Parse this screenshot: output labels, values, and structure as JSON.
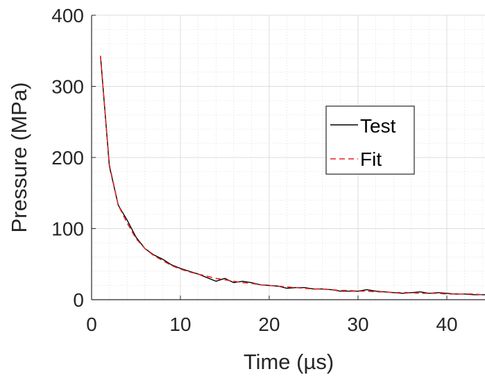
{
  "chart_data": {
    "type": "line",
    "title": "",
    "xlabel": "Time (µs)",
    "ylabel": "Pressure (MPa)",
    "xlim": [
      0,
      45
    ],
    "ylim": [
      0,
      400
    ],
    "x_ticks": [
      0,
      10,
      20,
      30,
      40
    ],
    "x_tick_labels": [
      "0",
      "10",
      "20",
      "30",
      "40"
    ],
    "y_ticks": [
      0,
      100,
      200,
      300,
      400
    ],
    "y_tick_labels": [
      "0",
      "100",
      "200",
      "300",
      "400"
    ],
    "grid": true,
    "minor_grid": true,
    "legend_position": "upper-right",
    "series": [
      {
        "name": "Test",
        "color": "#000000",
        "line_style": "solid",
        "x": [
          1,
          2,
          3,
          4,
          5,
          6,
          7,
          8,
          9,
          10,
          11,
          12,
          13,
          14,
          15,
          16,
          17,
          18,
          19,
          20,
          21,
          22,
          23,
          24,
          25,
          26,
          27,
          28,
          29,
          30,
          31,
          32,
          33,
          34,
          35,
          36,
          37,
          38,
          39,
          40,
          41,
          42,
          43,
          44,
          45
        ],
        "values": [
          343,
          188,
          133,
          112,
          88,
          72,
          63,
          57,
          49,
          44,
          40,
          36,
          31,
          26,
          30,
          24,
          26,
          24,
          21,
          20,
          19,
          16,
          17,
          17,
          15,
          15,
          14,
          12,
          12,
          12,
          14,
          12,
          11,
          10,
          9,
          10,
          11,
          9,
          10,
          9,
          8,
          8,
          7,
          7,
          7
        ]
      },
      {
        "name": "Fit",
        "color": "#e8201f",
        "line_style": "dashed",
        "x": [
          1,
          2,
          3,
          4,
          5,
          6,
          7,
          8,
          9,
          10,
          11,
          12,
          13,
          14,
          15,
          16,
          17,
          18,
          19,
          20,
          21,
          22,
          23,
          24,
          25,
          26,
          27,
          28,
          29,
          30,
          31,
          32,
          33,
          34,
          35,
          36,
          37,
          38,
          39,
          40,
          41,
          42,
          43,
          44,
          45
        ],
        "values": [
          343,
          190,
          133,
          108,
          86,
          72,
          62,
          55,
          48,
          43,
          39,
          36,
          33,
          30,
          28,
          26,
          24,
          23,
          21,
          20,
          19,
          18,
          17,
          16,
          15,
          15,
          14,
          13,
          13,
          12,
          12,
          11,
          11,
          10,
          10,
          10,
          9,
          9,
          9,
          8,
          8,
          8,
          8,
          7,
          7
        ]
      }
    ]
  }
}
